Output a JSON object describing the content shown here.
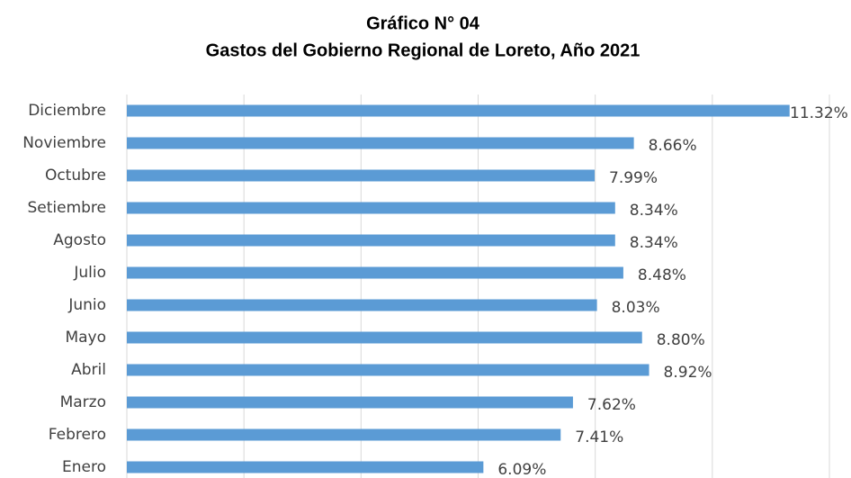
{
  "chart_data": {
    "type": "bar",
    "orientation": "horizontal",
    "title": "Gráfico N° 04",
    "subtitle": "Gastos del Gobierno Regional de Loreto, Año 2021",
    "categories": [
      "Diciembre",
      "Noviembre",
      "Octubre",
      "Setiembre",
      "Agosto",
      "Julio",
      "Junio",
      "Mayo",
      "Abril",
      "Marzo",
      "Febrero",
      "Enero"
    ],
    "values": [
      11.32,
      8.66,
      7.99,
      8.34,
      8.34,
      8.48,
      8.03,
      8.8,
      8.92,
      7.62,
      7.41,
      6.09
    ],
    "value_labels": [
      "11.32%",
      "8.66%",
      "7.99%",
      "8.34%",
      "8.34%",
      "8.48%",
      "8.03%",
      "8.80%",
      "8.92%",
      "7.62%",
      "7.41%",
      "6.09%"
    ],
    "color": "#5b9bd5",
    "xlim": [
      0,
      12
    ],
    "xticks": [
      0,
      2,
      4,
      6,
      8,
      10,
      12
    ],
    "grid": true
  }
}
